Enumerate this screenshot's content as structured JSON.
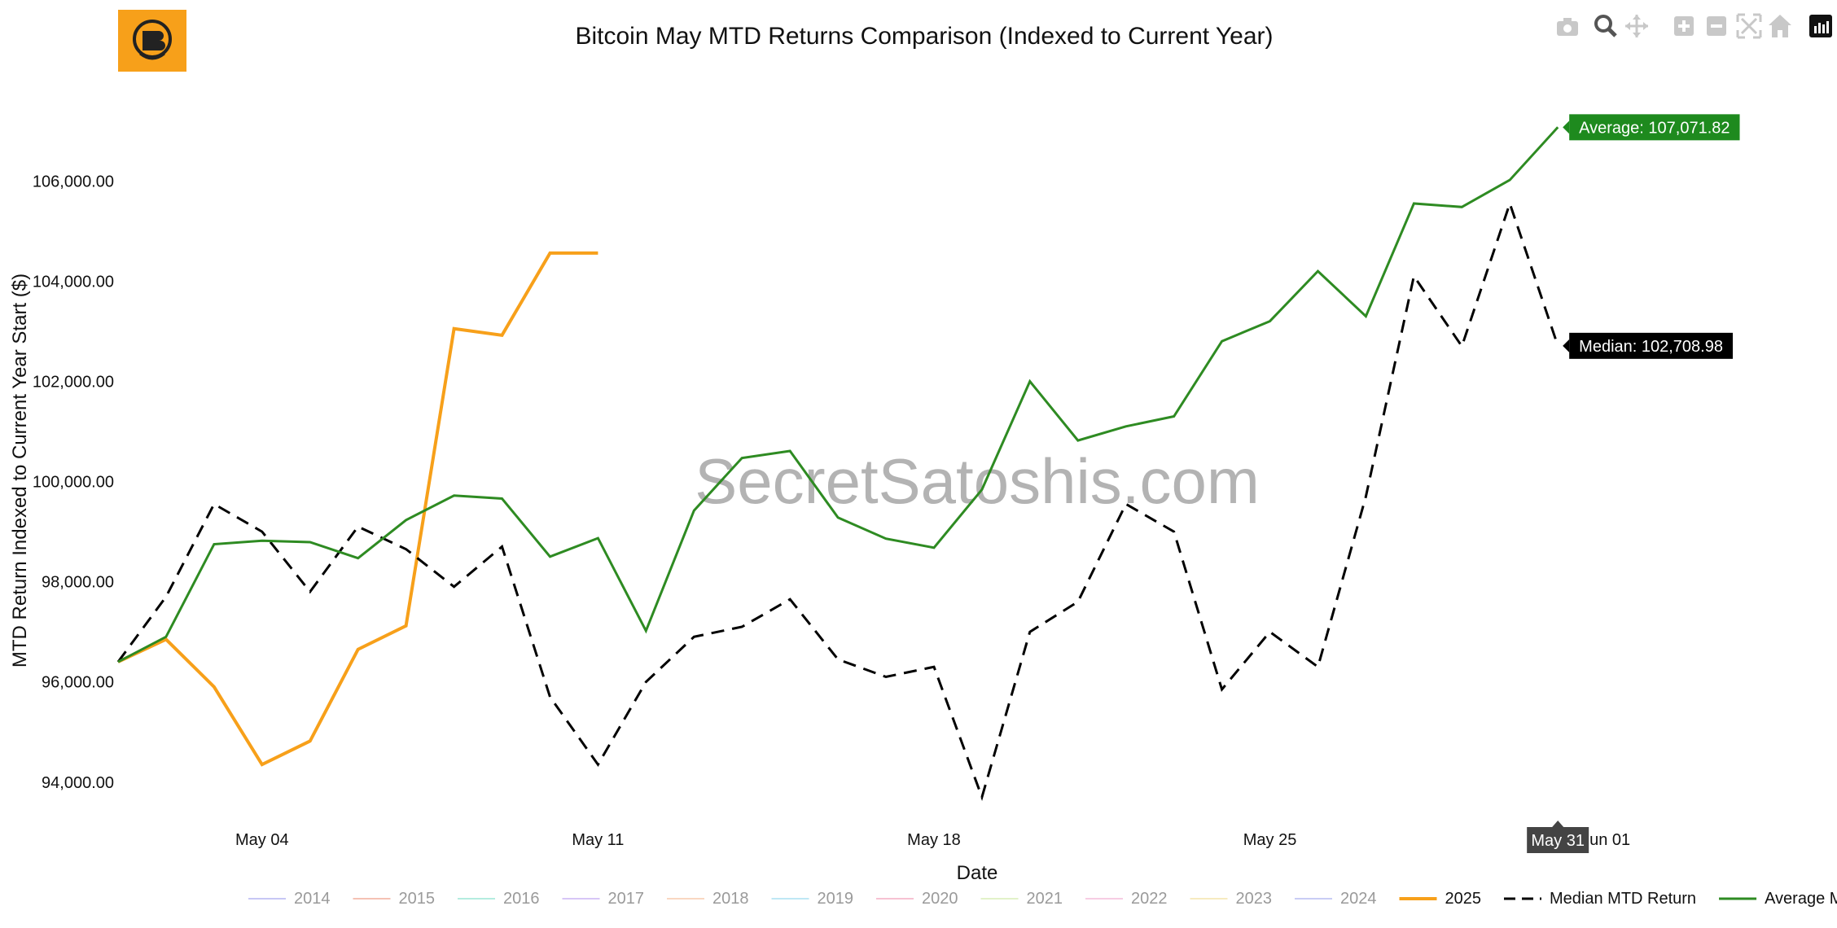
{
  "logo": {
    "icon": "bitcoin-logo-icon",
    "color": "#f7a01a"
  },
  "modebar": {
    "icons": [
      "camera-icon",
      "zoom-icon",
      "pan-icon",
      "zoom-in-icon",
      "zoom-out-icon",
      "autoscale-icon",
      "home-icon",
      "plotly-logo-icon"
    ]
  },
  "watermark": "SecretSatoshis.com",
  "hover_label": "May 31",
  "chart_data": {
    "type": "line",
    "title": "Bitcoin May MTD Returns Comparison (Indexed to Current Year)",
    "xlabel": "Date",
    "ylabel": "MTD Return Indexed to Current Year Start ($)",
    "x_range": [
      "2025-05-01",
      "2025-06-03"
    ],
    "ylim": [
      93200,
      107500
    ],
    "x_ticks": [
      {
        "date": "2025-05-04",
        "label": "May 04"
      },
      {
        "date": "2025-05-11",
        "label": "May 11"
      },
      {
        "date": "2025-05-18",
        "label": "May 18"
      },
      {
        "date": "2025-05-25",
        "label": "May 25"
      },
      {
        "date": "2025-06-01",
        "label": "Jun 01"
      }
    ],
    "y_ticks": [
      {
        "value": 94000,
        "label": "94,000.00"
      },
      {
        "value": 96000,
        "label": "96,000.00"
      },
      {
        "value": 98000,
        "label": "98,000.00"
      },
      {
        "value": 100000,
        "label": "100,000.00"
      },
      {
        "value": 102000,
        "label": "102,000.00"
      },
      {
        "value": 104000,
        "label": "104,000.00"
      },
      {
        "value": 106000,
        "label": "106,000.00"
      }
    ],
    "legend_position": "bottom",
    "grid": false,
    "series": [
      {
        "name": "2014",
        "color": "#c7c7f5",
        "dash": "solid",
        "faded": true,
        "values": []
      },
      {
        "name": "2015",
        "color": "#f5c2b4",
        "dash": "solid",
        "faded": true,
        "values": []
      },
      {
        "name": "2016",
        "color": "#b4ecdf",
        "dash": "solid",
        "faded": true,
        "values": []
      },
      {
        "name": "2017",
        "color": "#d7c6f7",
        "dash": "solid",
        "faded": true,
        "values": []
      },
      {
        "name": "2018",
        "color": "#f9d7c2",
        "dash": "solid",
        "faded": true,
        "values": []
      },
      {
        "name": "2019",
        "color": "#bfe8f5",
        "dash": "solid",
        "faded": true,
        "values": []
      },
      {
        "name": "2020",
        "color": "#f7c2d2",
        "dash": "solid",
        "faded": true,
        "values": []
      },
      {
        "name": "2021",
        "color": "#e2f2c9",
        "dash": "solid",
        "faded": true,
        "values": []
      },
      {
        "name": "2022",
        "color": "#f7cde3",
        "dash": "solid",
        "faded": true,
        "values": []
      },
      {
        "name": "2023",
        "color": "#f7ebc0",
        "dash": "solid",
        "faded": true,
        "values": []
      },
      {
        "name": "2024",
        "color": "#c9cdf5",
        "dash": "solid",
        "faded": true,
        "values": []
      },
      {
        "name": "2025",
        "color": "#f7a01a",
        "dash": "solid",
        "faded": false,
        "width": 4,
        "points": [
          [
            "2025-05-01",
            96400
          ],
          [
            "2025-05-02",
            96850
          ],
          [
            "2025-05-03",
            95900
          ],
          [
            "2025-05-04",
            94350
          ],
          [
            "2025-05-05",
            94820
          ],
          [
            "2025-05-06",
            96650
          ],
          [
            "2025-05-07",
            97120
          ],
          [
            "2025-05-08",
            103050
          ],
          [
            "2025-05-09",
            102920
          ],
          [
            "2025-05-10",
            104560
          ],
          [
            "2025-05-11",
            104560
          ]
        ]
      },
      {
        "name": "Median MTD Return",
        "color": "#000000",
        "dash": "dashed",
        "faded": false,
        "width": 3,
        "points": [
          [
            "2025-05-01",
            96400
          ],
          [
            "2025-05-02",
            97700
          ],
          [
            "2025-05-03",
            99550
          ],
          [
            "2025-05-04",
            99000
          ],
          [
            "2025-05-05",
            97800
          ],
          [
            "2025-05-06",
            99100
          ],
          [
            "2025-05-07",
            98650
          ],
          [
            "2025-05-08",
            97900
          ],
          [
            "2025-05-09",
            98700
          ],
          [
            "2025-05-10",
            95700
          ],
          [
            "2025-05-11",
            94350
          ],
          [
            "2025-05-12",
            96000
          ],
          [
            "2025-05-13",
            96900
          ],
          [
            "2025-05-14",
            97100
          ],
          [
            "2025-05-15",
            97650
          ],
          [
            "2025-05-16",
            96450
          ],
          [
            "2025-05-17",
            96100
          ],
          [
            "2025-05-18",
            96300
          ],
          [
            "2025-05-19",
            93700
          ],
          [
            "2025-05-20",
            97000
          ],
          [
            "2025-05-21",
            97600
          ],
          [
            "2025-05-22",
            99550
          ],
          [
            "2025-05-23",
            99000
          ],
          [
            "2025-05-24",
            95850
          ],
          [
            "2025-05-25",
            97000
          ],
          [
            "2025-05-26",
            96300
          ],
          [
            "2025-05-27",
            99700
          ],
          [
            "2025-05-28",
            104100
          ],
          [
            "2025-05-29",
            102700
          ],
          [
            "2025-05-30",
            105550
          ],
          [
            "2025-05-31",
            102708.98
          ]
        ]
      },
      {
        "name": "Average MTD Return",
        "color": "#2e8b22",
        "dash": "solid",
        "faded": false,
        "width": 3,
        "points": [
          [
            "2025-05-01",
            96400
          ],
          [
            "2025-05-02",
            96900
          ],
          [
            "2025-05-03",
            98750
          ],
          [
            "2025-05-04",
            98820
          ],
          [
            "2025-05-05",
            98790
          ],
          [
            "2025-05-06",
            98470
          ],
          [
            "2025-05-07",
            99230
          ],
          [
            "2025-05-08",
            99720
          ],
          [
            "2025-05-09",
            99660
          ],
          [
            "2025-05-10",
            98500
          ],
          [
            "2025-05-11",
            98870
          ],
          [
            "2025-05-12",
            97020
          ],
          [
            "2025-05-13",
            99420
          ],
          [
            "2025-05-14",
            100470
          ],
          [
            "2025-05-15",
            100610
          ],
          [
            "2025-05-16",
            99280
          ],
          [
            "2025-05-17",
            98860
          ],
          [
            "2025-05-18",
            98680
          ],
          [
            "2025-05-19",
            99840
          ],
          [
            "2025-05-20",
            102000
          ],
          [
            "2025-05-21",
            100820
          ],
          [
            "2025-05-22",
            101100
          ],
          [
            "2025-05-23",
            101300
          ],
          [
            "2025-05-24",
            102800
          ],
          [
            "2025-05-25",
            103200
          ],
          [
            "2025-05-26",
            104200
          ],
          [
            "2025-05-27",
            103300
          ],
          [
            "2025-05-28",
            105550
          ],
          [
            "2025-05-29",
            105480
          ],
          [
            "2025-05-30",
            106020
          ],
          [
            "2025-05-31",
            107071.82
          ]
        ]
      }
    ],
    "annotations": [
      {
        "series": "Average MTD Return",
        "text": "Average: 107,071.82",
        "bg": "#1e8a1e"
      },
      {
        "series": "Median MTD Return",
        "text": "Median: 102,708.98",
        "bg": "#000000"
      }
    ]
  }
}
